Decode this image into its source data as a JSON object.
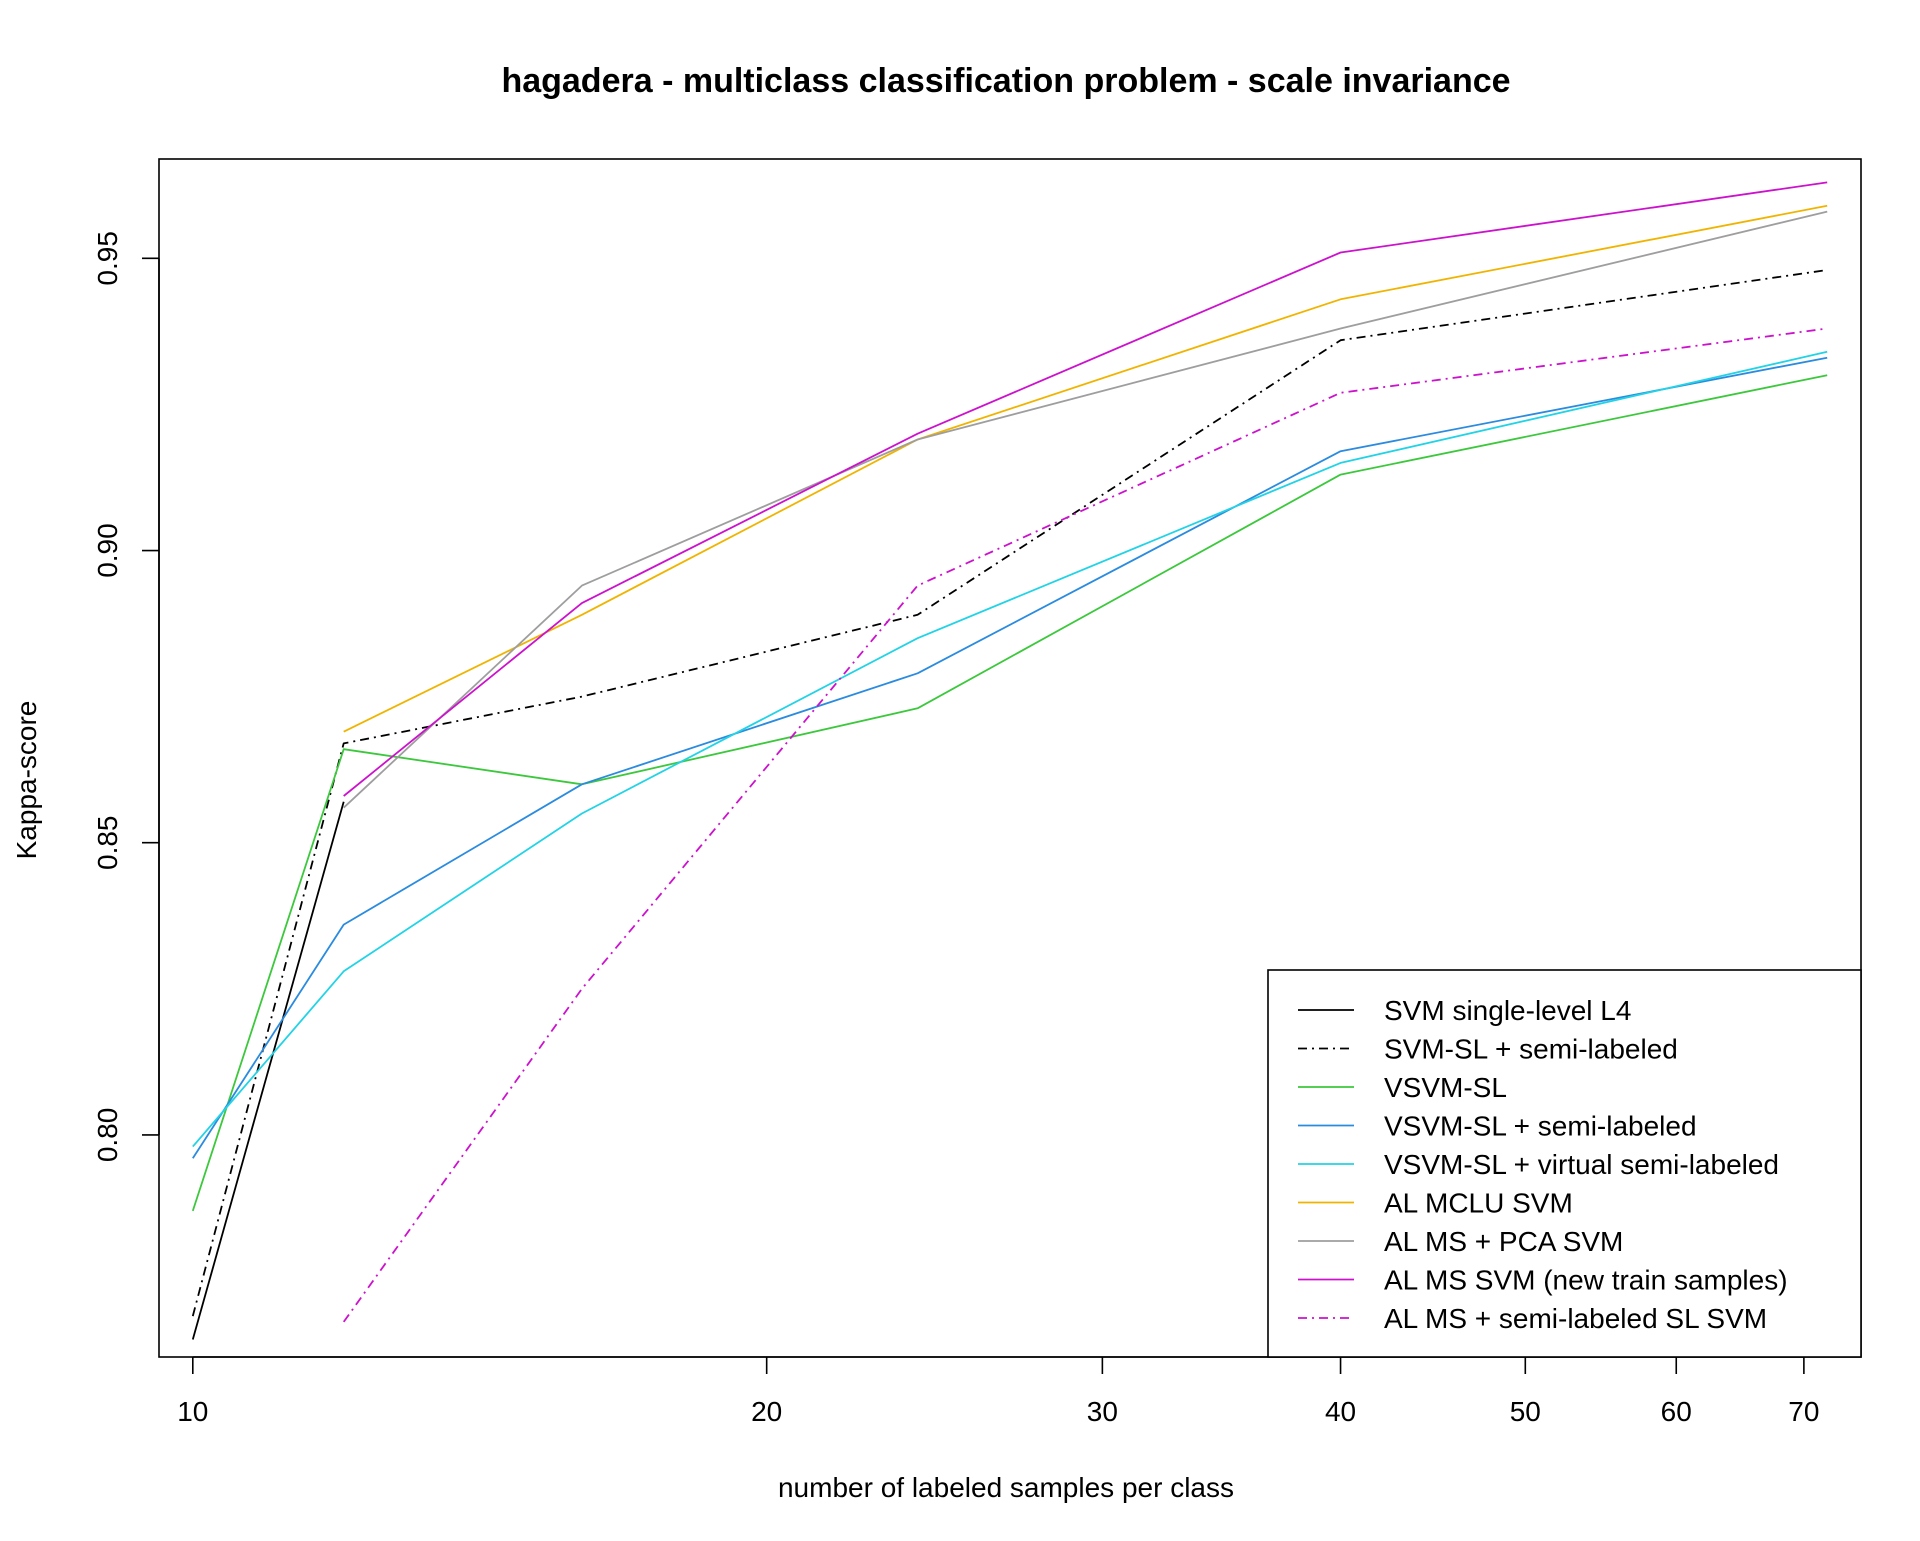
{
  "chart_data": {
    "type": "line",
    "title": "hagadera - multiclass classification problem - scale invariance",
    "xlabel": "number of labeled samples per class",
    "ylabel": "Kappa-score",
    "x_scale": "log",
    "xlim": [
      9.6,
      75
    ],
    "ylim": [
      0.762,
      0.967
    ],
    "x_ticks": [
      10,
      20,
      30,
      40,
      50,
      60,
      70
    ],
    "x_tick_labels": [
      "10",
      "20",
      "30",
      "40",
      "50",
      "60",
      "70"
    ],
    "y_ticks": [
      0.8,
      0.85,
      0.9,
      0.95
    ],
    "y_tick_labels": [
      "0.80",
      "0.85",
      "0.90",
      "0.95"
    ],
    "grid": false,
    "legend_position": "bottom-right",
    "series": [
      {
        "name": "SVM single-level L4",
        "color": "#000000",
        "dash": "solid",
        "x": [
          10,
          12,
          16,
          24,
          40,
          72
        ],
        "y": [
          0.765,
          0.857,
          null,
          null,
          null,
          null
        ]
      },
      {
        "name": "SVM-SL + semi-labeled",
        "color": "#000000",
        "dash": "dashdot",
        "x": [
          10,
          12,
          16,
          24,
          40,
          72
        ],
        "y": [
          0.769,
          0.867,
          0.875,
          0.889,
          0.936,
          0.948
        ]
      },
      {
        "name": "VSVM-SL",
        "color": "#3cc83c",
        "dash": "solid",
        "x": [
          10,
          12,
          16,
          24,
          40,
          72
        ],
        "y": [
          0.787,
          0.866,
          0.86,
          0.873,
          0.913,
          0.93
        ]
      },
      {
        "name": "VSVM-SL + semi-labeled",
        "color": "#2a8bdf",
        "dash": "solid",
        "x": [
          10,
          12,
          16,
          24,
          40,
          72
        ],
        "y": [
          0.796,
          0.836,
          0.86,
          0.879,
          0.917,
          0.933
        ]
      },
      {
        "name": "VSVM-SL + virtual semi-labeled",
        "color": "#22d3e6",
        "dash": "solid",
        "x": [
          10,
          12,
          16,
          24,
          40,
          72
        ],
        "y": [
          0.798,
          0.828,
          0.855,
          0.885,
          0.915,
          0.934
        ]
      },
      {
        "name": "AL MCLU SVM",
        "color": "#f0b400",
        "dash": "solid",
        "x": [
          12,
          16,
          24,
          40,
          72
        ],
        "y": [
          0.869,
          0.889,
          0.919,
          0.943,
          0.959
        ]
      },
      {
        "name": "AL MS + PCA SVM",
        "color": "#9e9e9e",
        "dash": "solid",
        "x": [
          12,
          16,
          24,
          40,
          72
        ],
        "y": [
          0.856,
          0.894,
          0.919,
          0.938,
          0.958
        ]
      },
      {
        "name": "AL MS SVM (new train samples)",
        "color": "#cc12cc",
        "dash": "solid",
        "x": [
          12,
          16,
          24,
          40,
          72
        ],
        "y": [
          0.858,
          0.891,
          0.92,
          0.951,
          0.963
        ]
      },
      {
        "name": "AL MS + semi-labeled SL SVM",
        "color": "#cc12cc",
        "dash": "dashdot",
        "x": [
          12,
          16,
          24,
          40,
          72
        ],
        "y": [
          0.768,
          0.825,
          0.894,
          0.927,
          0.938
        ]
      }
    ]
  }
}
